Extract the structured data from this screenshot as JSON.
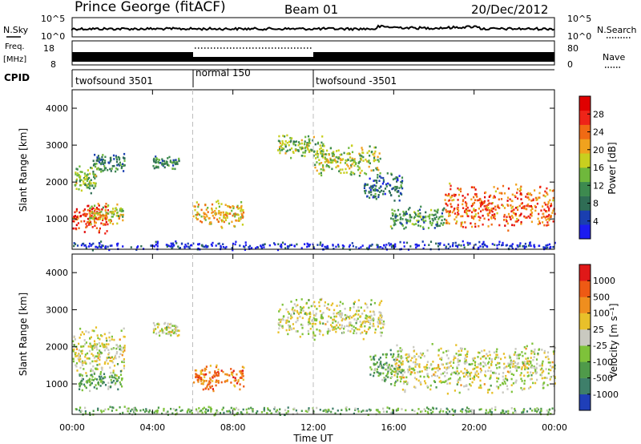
{
  "header": {
    "station": "Prince George (fitACF)",
    "beam": "Beam 01",
    "date": "20/Dec/2012"
  },
  "nsky_panel": {
    "left_label": "N.Sky",
    "right_label": "N.Search",
    "ticks": [
      "10^5",
      "10^0"
    ]
  },
  "freq_panel": {
    "left_label_1": "Freq.",
    "left_label_2": "[MHz]",
    "right_label": "Nave",
    "left_ticks": [
      "18",
      "8"
    ],
    "right_ticks": [
      "80",
      "0"
    ]
  },
  "cpid": {
    "label": "CPID",
    "segments": [
      {
        "name": "twofsound 3501",
        "start_hour": 0,
        "end_hour": 6
      },
      {
        "name": "normal 150",
        "start_hour": 6,
        "end_hour": 12
      },
      {
        "name": "twofsound -3501",
        "start_hour": 12,
        "end_hour": 24
      }
    ]
  },
  "colors": {
    "power": [
      "#1c1cf0",
      "#1a3fb0",
      "#2f6d55",
      "#3d8a4f",
      "#6fb83c",
      "#c8cf1f",
      "#f0a21e",
      "#f06a14",
      "#ee2418",
      "#e00000"
    ],
    "velocity": [
      "#1f3fb8",
      "#3e7f6a",
      "#4f9a4a",
      "#7ec23a",
      "#c9c9c0",
      "#e8c02a",
      "#ef8e1e",
      "#ee5a14",
      "#e01818"
    ]
  },
  "chart_data": [
    {
      "type": "heatmap",
      "panel": "power",
      "xlabel": "",
      "ylabel": "Slant Range [km]",
      "xlim": [
        0,
        24
      ],
      "ylim": [
        180,
        4500
      ],
      "x_ticks": [
        "00:00",
        "04:00",
        "08:00",
        "12:00",
        "16:00",
        "20:00",
        "00:00"
      ],
      "y_ticks": [
        "1000",
        "2000",
        "3000",
        "4000"
      ],
      "y_tick_values": [
        1000,
        2000,
        3000,
        4000
      ],
      "colorbar": {
        "label": "Power [dB]",
        "ticks": [
          "28",
          "24",
          "20",
          "16",
          "12",
          "8",
          "4"
        ]
      },
      "regions": [
        {
          "t0": 0.0,
          "t1": 1.8,
          "r_center": 1050,
          "r_width": 420,
          "level": 0.85
        },
        {
          "t0": 0.1,
          "t1": 1.2,
          "r_center": 2100,
          "r_width": 380,
          "level": 0.45
        },
        {
          "t0": 0.8,
          "t1": 2.5,
          "r_center": 1150,
          "r_width": 300,
          "level": 0.55
        },
        {
          "t0": 1.0,
          "t1": 2.6,
          "r_center": 2550,
          "r_width": 300,
          "level": 0.3
        },
        {
          "t0": 4.0,
          "t1": 5.3,
          "r_center": 2550,
          "r_width": 200,
          "level": 0.3
        },
        {
          "t0": 6.0,
          "t1": 8.5,
          "r_center": 1150,
          "r_width": 400,
          "level": 0.6
        },
        {
          "t0": 10.2,
          "t1": 12.5,
          "r_center": 3000,
          "r_width": 350,
          "level": 0.45
        },
        {
          "t0": 12.0,
          "t1": 15.3,
          "r_center": 2600,
          "r_width": 450,
          "level": 0.5
        },
        {
          "t0": 14.5,
          "t1": 16.4,
          "r_center": 1900,
          "r_width": 400,
          "level": 0.25
        },
        {
          "t0": 15.8,
          "t1": 18.5,
          "r_center": 1050,
          "r_width": 350,
          "level": 0.35
        },
        {
          "t0": 18.5,
          "t1": 24.0,
          "r_center": 1350,
          "r_width": 650,
          "level": 0.75
        },
        {
          "t0": 0.0,
          "t1": 24.0,
          "r_center": 300,
          "r_width": 130,
          "level": 0.1
        }
      ]
    },
    {
      "type": "heatmap",
      "panel": "velocity",
      "xlabel": "Time UT",
      "ylabel": "Slant Range [km]",
      "xlim": [
        0,
        24
      ],
      "ylim": [
        180,
        4500
      ],
      "x_ticks": [
        "00:00",
        "04:00",
        "08:00",
        "12:00",
        "16:00",
        "20:00",
        "00:00"
      ],
      "y_ticks": [
        "1000",
        "2000",
        "3000",
        "4000"
      ],
      "y_tick_values": [
        1000,
        2000,
        3000,
        4000
      ],
      "colorbar": {
        "label": "Velocity [m s⁻¹]",
        "ticks": [
          "1000",
          "500",
          "100",
          "25",
          "-25",
          "-100",
          "-500",
          "-1000"
        ]
      },
      "regions": [
        {
          "t0": 0.0,
          "t1": 2.6,
          "r_center": 1900,
          "r_width": 700,
          "level": 0.5
        },
        {
          "t0": 0.3,
          "t1": 2.5,
          "r_center": 1100,
          "r_width": 300,
          "level": 0.3
        },
        {
          "t0": 4.0,
          "t1": 5.3,
          "r_center": 2500,
          "r_width": 200,
          "level": 0.5
        },
        {
          "t0": 6.0,
          "t1": 8.5,
          "r_center": 1200,
          "r_width": 400,
          "level": 0.77
        },
        {
          "t0": 10.2,
          "t1": 15.5,
          "r_center": 2800,
          "r_width": 600,
          "level": 0.5
        },
        {
          "t0": 14.8,
          "t1": 16.4,
          "r_center": 1500,
          "r_width": 500,
          "level": 0.32
        },
        {
          "t0": 16.0,
          "t1": 24.0,
          "r_center": 1450,
          "r_width": 700,
          "level": 0.5
        },
        {
          "t0": 0.0,
          "t1": 24.0,
          "r_center": 300,
          "r_width": 130,
          "level": 0.35
        }
      ]
    }
  ]
}
